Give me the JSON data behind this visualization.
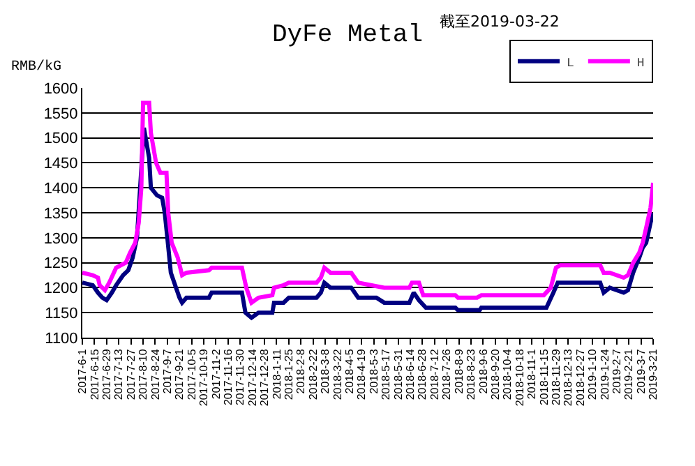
{
  "chart_data": {
    "type": "line",
    "title": "DyFe Metal",
    "subtitle": "截至2019-03-22",
    "ylabel": "RMB/kG",
    "legend": "top right",
    "grid": "y",
    "line_style": "solid",
    "marker": "none",
    "xlim": [
      "2017-06-01",
      "2019-03-21"
    ],
    "ylim": [
      1100,
      1600
    ],
    "yticks": [
      1100,
      1150,
      1200,
      1250,
      1300,
      1350,
      1400,
      1450,
      1500,
      1550,
      1600
    ],
    "xticks": [
      {
        "value": "2017-06-01",
        "label": "2017-6-1"
      },
      {
        "value": "2017-06-15",
        "label": "2017-6-15"
      },
      {
        "value": "2017-06-29",
        "label": "2017-6-29"
      },
      {
        "value": "2017-07-13",
        "label": "2017-7-13"
      },
      {
        "value": "2017-07-27",
        "label": "2017-7-27"
      },
      {
        "value": "2017-08-10",
        "label": "2017-8-10"
      },
      {
        "value": "2017-08-24",
        "label": "2017-8-24"
      },
      {
        "value": "2017-09-07",
        "label": "2017-9-7"
      },
      {
        "value": "2017-09-21",
        "label": "2017-9-21"
      },
      {
        "value": "2017-10-05",
        "label": "2017-10-5"
      },
      {
        "value": "2017-10-19",
        "label": "2017-10-19"
      },
      {
        "value": "2017-11-02",
        "label": "2017-11-2"
      },
      {
        "value": "2017-11-16",
        "label": "2017-11-16"
      },
      {
        "value": "2017-11-30",
        "label": "2017-11-30"
      },
      {
        "value": "2017-12-14",
        "label": "2017-12-14"
      },
      {
        "value": "2017-12-28",
        "label": "2017-12-28"
      },
      {
        "value": "2018-01-11",
        "label": "2018-1-11"
      },
      {
        "value": "2018-01-25",
        "label": "2018-1-25"
      },
      {
        "value": "2018-02-08",
        "label": "2018-2-8"
      },
      {
        "value": "2018-02-22",
        "label": "2018-2-22"
      },
      {
        "value": "2018-03-08",
        "label": "2018-3-8"
      },
      {
        "value": "2018-03-22",
        "label": "2018-3-22"
      },
      {
        "value": "2018-04-05",
        "label": "2018-4-5"
      },
      {
        "value": "2018-04-19",
        "label": "2018-4-19"
      },
      {
        "value": "2018-05-03",
        "label": "2018-5-3"
      },
      {
        "value": "2018-05-17",
        "label": "2018-5-17"
      },
      {
        "value": "2018-05-31",
        "label": "2018-5-31"
      },
      {
        "value": "2018-06-14",
        "label": "2018-6-14"
      },
      {
        "value": "2018-06-28",
        "label": "2018-6-28"
      },
      {
        "value": "2018-07-12",
        "label": "2018-7-12"
      },
      {
        "value": "2018-07-26",
        "label": "2018-7-26"
      },
      {
        "value": "2018-08-09",
        "label": "2018-8-9"
      },
      {
        "value": "2018-08-23",
        "label": "2018-8-23"
      },
      {
        "value": "2018-09-06",
        "label": "2018-9-6"
      },
      {
        "value": "2018-09-20",
        "label": "2018-9-20"
      },
      {
        "value": "2018-10-04",
        "label": "2018-10-4"
      },
      {
        "value": "2018-10-18",
        "label": "2018-10-18"
      },
      {
        "value": "2018-11-01",
        "label": "2018-11-1"
      },
      {
        "value": "2018-11-15",
        "label": "2018-11-15"
      },
      {
        "value": "2018-11-29",
        "label": "2018-11-29"
      },
      {
        "value": "2018-12-13",
        "label": "2018-12-13"
      },
      {
        "value": "2018-12-27",
        "label": "2018-12-27"
      },
      {
        "value": "2019-01-10",
        "label": "2019-1-10"
      },
      {
        "value": "2019-01-24",
        "label": "2019-1-24"
      },
      {
        "value": "2019-02-07",
        "label": "2019-2-7"
      },
      {
        "value": "2019-02-21",
        "label": "2019-2-21"
      },
      {
        "value": "2019-03-07",
        "label": "2019-3-7"
      },
      {
        "value": "2019-03-21",
        "label": "2019-3-21"
      }
    ],
    "series": [
      {
        "name": "L",
        "color": "#000080",
        "x": [
          "2017-06-01",
          "2017-06-13",
          "2017-06-19",
          "2017-06-24",
          "2017-06-29",
          "2017-07-05",
          "2017-07-10",
          "2017-07-18",
          "2017-07-24",
          "2017-07-29",
          "2017-08-03",
          "2017-08-11",
          "2017-08-17",
          "2017-08-19",
          "2017-08-26",
          "2017-09-01",
          "2017-09-04",
          "2017-09-07",
          "2017-09-11",
          "2017-09-17",
          "2017-09-21",
          "2017-09-24",
          "2017-09-29",
          "2017-10-25",
          "2017-10-28",
          "2017-12-02",
          "2017-12-06",
          "2017-12-13",
          "2017-12-21",
          "2018-01-06",
          "2018-01-08",
          "2018-01-19",
          "2018-01-25",
          "2018-02-26",
          "2018-03-03",
          "2018-03-07",
          "2018-03-14",
          "2018-04-07",
          "2018-04-15",
          "2018-05-06",
          "2018-05-15",
          "2018-06-13",
          "2018-06-18",
          "2018-06-24",
          "2018-07-02",
          "2018-08-05",
          "2018-08-08",
          "2018-09-02",
          "2018-09-04",
          "2018-11-18",
          "2018-11-26",
          "2018-12-01",
          "2019-01-19",
          "2019-01-23",
          "2019-01-30",
          "2019-02-15",
          "2019-02-20",
          "2019-02-26",
          "2019-03-05",
          "2019-03-09",
          "2019-03-13",
          "2019-03-18",
          "2019-03-21"
        ],
        "values": [
          1210,
          1205,
          1190,
          1180,
          1175,
          1190,
          1205,
          1225,
          1235,
          1260,
          1300,
          1520,
          1460,
          1400,
          1385,
          1380,
          1350,
          1300,
          1230,
          1200,
          1180,
          1170,
          1180,
          1180,
          1190,
          1190,
          1150,
          1140,
          1150,
          1150,
          1170,
          1170,
          1180,
          1180,
          1190,
          1210,
          1200,
          1200,
          1180,
          1180,
          1170,
          1170,
          1190,
          1175,
          1160,
          1160,
          1155,
          1155,
          1160,
          1160,
          1190,
          1210,
          1210,
          1190,
          1200,
          1190,
          1195,
          1230,
          1260,
          1280,
          1290,
          1330,
          1350
        ]
      },
      {
        "name": "H",
        "color": "#ff00ff",
        "x": [
          "2017-06-01",
          "2017-06-13",
          "2017-06-19",
          "2017-06-21",
          "2017-06-27",
          "2017-07-02",
          "2017-07-10",
          "2017-07-21",
          "2017-07-26",
          "2017-08-01",
          "2017-08-05",
          "2017-08-08",
          "2017-08-10",
          "2017-08-17",
          "2017-08-19",
          "2017-08-25",
          "2017-08-30",
          "2017-09-06",
          "2017-09-08",
          "2017-09-12",
          "2017-09-19",
          "2017-09-24",
          "2017-09-29",
          "2017-10-25",
          "2017-10-28",
          "2017-12-02",
          "2017-12-07",
          "2017-12-13",
          "2017-12-21",
          "2018-01-06",
          "2018-01-08",
          "2018-01-19",
          "2018-01-25",
          "2018-02-26",
          "2018-03-03",
          "2018-03-07",
          "2018-03-14",
          "2018-04-07",
          "2018-04-15",
          "2018-05-15",
          "2018-06-13",
          "2018-06-16",
          "2018-06-24",
          "2018-06-29",
          "2018-08-05",
          "2018-08-08",
          "2018-08-30",
          "2018-09-04",
          "2018-11-15",
          "2018-11-23",
          "2018-11-29",
          "2018-12-04",
          "2019-01-19",
          "2019-01-23",
          "2019-01-30",
          "2019-02-15",
          "2019-02-20",
          "2019-02-26",
          "2019-03-05",
          "2019-03-09",
          "2019-03-13",
          "2019-03-18",
          "2019-03-21"
        ],
        "values": [
          1230,
          1225,
          1220,
          1205,
          1195,
          1210,
          1240,
          1250,
          1270,
          1290,
          1330,
          1400,
          1570,
          1570,
          1510,
          1450,
          1430,
          1430,
          1350,
          1290,
          1260,
          1225,
          1230,
          1235,
          1240,
          1240,
          1200,
          1170,
          1180,
          1185,
          1200,
          1205,
          1210,
          1210,
          1220,
          1240,
          1230,
          1230,
          1210,
          1200,
          1200,
          1210,
          1210,
          1185,
          1185,
          1180,
          1180,
          1185,
          1185,
          1200,
          1240,
          1245,
          1245,
          1230,
          1230,
          1220,
          1225,
          1250,
          1270,
          1290,
          1320,
          1360,
          1410
        ]
      }
    ]
  }
}
